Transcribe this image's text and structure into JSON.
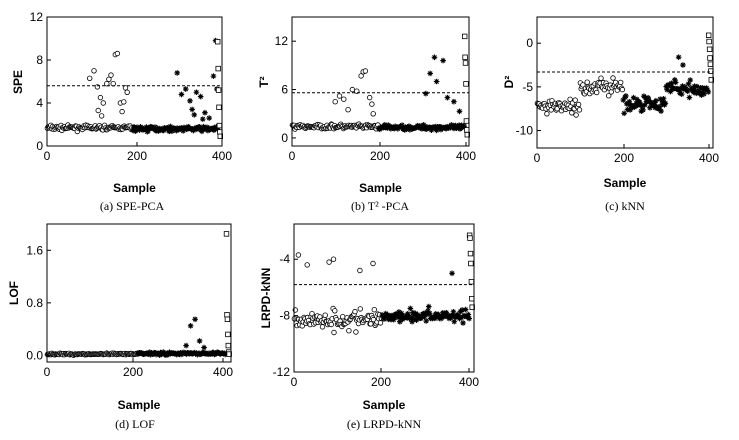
{
  "chart_data": [
    {
      "type": "scatter",
      "caption": "(a) SPE-PCA",
      "xlabel": "Sample",
      "ylabel": "SPE",
      "xlim": [
        0,
        410
      ],
      "ylim": [
        0,
        12
      ],
      "xticks": [
        0,
        200,
        400
      ],
      "yticks": [
        0,
        4,
        8,
        12
      ],
      "threshold": 5.6,
      "series": [
        {
          "marker": "circle",
          "x_range": [
            1,
            200
          ],
          "base": 1.7,
          "spread": 0.35,
          "spikes": [
            [
              100,
              6.3
            ],
            [
              110,
              7.0
            ],
            [
              118,
              5.5
            ],
            [
              125,
              4.5
            ],
            [
              132,
              4.0
            ],
            [
              140,
              5.8
            ],
            [
              145,
              6.2
            ],
            [
              150,
              6.6
            ],
            [
              155,
              5.8
            ],
            [
              160,
              8.5
            ],
            [
              165,
              8.6
            ],
            [
              172,
              4.0
            ],
            [
              176,
              3.2
            ],
            [
              180,
              4.1
            ],
            [
              184,
              5.4
            ],
            [
              188,
              5.0
            ],
            [
              120,
              3.3
            ],
            [
              128,
              2.8
            ]
          ]
        },
        {
          "marker": "star",
          "x_range": [
            201,
            400
          ],
          "base": 1.6,
          "spread": 0.4,
          "spikes": [
            [
              305,
              6.8
            ],
            [
              315,
              4.8
            ],
            [
              325,
              5.3
            ],
            [
              335,
              4.2
            ],
            [
              340,
              3.4
            ],
            [
              345,
              2.9
            ],
            [
              350,
              5.0
            ],
            [
              360,
              4.6
            ],
            [
              365,
              2.5
            ],
            [
              370,
              3.1
            ],
            [
              380,
              2.6
            ],
            [
              390,
              6.5
            ],
            [
              395,
              9.8
            ],
            [
              398,
              5.3
            ]
          ]
        },
        {
          "marker": "square",
          "points": [
            [
              400,
              9.7
            ],
            [
              401,
              7.2
            ],
            [
              402,
              5.2
            ],
            [
              403,
              3.6
            ],
            [
              404,
              1.9
            ],
            [
              405,
              1.3
            ],
            [
              406,
              0.9
            ]
          ]
        }
      ]
    },
    {
      "type": "scatter",
      "caption": "(b) T² -PCA",
      "xlabel": "Sample",
      "ylabel": "T²",
      "xlim": [
        0,
        410
      ],
      "ylim": [
        -1,
        15
      ],
      "xticks": [
        0,
        200,
        400
      ],
      "yticks": [
        0,
        6,
        12
      ],
      "threshold": 5.6,
      "series": [
        {
          "marker": "circle",
          "x_range": [
            1,
            200
          ],
          "base": 1.4,
          "spread": 0.5,
          "spikes": [
            [
              100,
              4.5
            ],
            [
              110,
              5.2
            ],
            [
              120,
              4.8
            ],
            [
              130,
              3.5
            ],
            [
              140,
              6.0
            ],
            [
              150,
              5.8
            ],
            [
              160,
              7.7
            ],
            [
              165,
              8.2
            ],
            [
              170,
              8.3
            ],
            [
              180,
              5.0
            ],
            [
              185,
              4.2
            ],
            [
              188,
              3.0
            ]
          ]
        },
        {
          "marker": "star",
          "x_range": [
            201,
            400
          ],
          "base": 1.3,
          "spread": 0.5,
          "spikes": [
            [
              310,
              5.5
            ],
            [
              320,
              8.0
            ],
            [
              330,
              10.0
            ],
            [
              335,
              7.0
            ],
            [
              350,
              9.6
            ],
            [
              360,
              5.0
            ],
            [
              375,
              4.5
            ],
            [
              388,
              3.3
            ]
          ]
        },
        {
          "marker": "square",
          "points": [
            [
              400,
              12.6
            ],
            [
              401,
              10.0
            ],
            [
              402,
              9.3
            ],
            [
              403,
              6.7
            ],
            [
              404,
              2.1
            ],
            [
              405,
              1.0
            ],
            [
              406,
              0.4
            ]
          ]
        }
      ]
    },
    {
      "type": "scatter",
      "caption": "(c) kNN",
      "xlabel": "Sample",
      "ylabel": "D²",
      "xlim": [
        0,
        410
      ],
      "ylim": [
        -12,
        3
      ],
      "xticks": [
        0,
        200,
        400
      ],
      "yticks": [
        -10,
        -5,
        0
      ],
      "threshold": -3.3,
      "series": [
        {
          "marker": "circle",
          "x_range": [
            1,
            200
          ],
          "base": -6.4,
          "spread": 1.2,
          "spikes": []
        },
        {
          "marker": "star",
          "x_range": [
            201,
            400
          ],
          "base": -6.0,
          "spread": 1.3,
          "spikes": [
            [
              330,
              -1.6
            ],
            [
              340,
              -2.5
            ]
          ]
        },
        {
          "marker": "square",
          "points": [
            [
              400,
              0.9
            ],
            [
              401,
              0.2
            ],
            [
              402,
              -0.7
            ],
            [
              403,
              -1.7
            ],
            [
              404,
              -2.4
            ],
            [
              405,
              -3.2
            ],
            [
              406,
              -4.2
            ]
          ]
        }
      ]
    },
    {
      "type": "scatter",
      "caption": "(d) LOF",
      "xlabel": "Sample",
      "ylabel": "LOF",
      "xlim": [
        0,
        410
      ],
      "ylim": [
        -0.1,
        2.0
      ],
      "xticks": [
        0,
        200,
        400
      ],
      "yticks": [
        0.0,
        0.8,
        1.6
      ],
      "threshold": null,
      "series": [
        {
          "marker": "circle",
          "x_range": [
            1,
            200
          ],
          "base": 0.02,
          "spread": 0.025,
          "spikes": []
        },
        {
          "marker": "star",
          "x_range": [
            201,
            400
          ],
          "base": 0.03,
          "spread": 0.035,
          "spikes": [
            [
              310,
              0.15
            ],
            [
              320,
              0.45
            ],
            [
              330,
              0.55
            ],
            [
              340,
              0.22
            ],
            [
              350,
              0.12
            ]
          ]
        },
        {
          "marker": "square",
          "points": [
            [
              400,
              1.85
            ],
            [
              401,
              0.62
            ],
            [
              402,
              0.55
            ],
            [
              403,
              0.32
            ],
            [
              404,
              0.15
            ],
            [
              405,
              0.05
            ],
            [
              406,
              0.02
            ]
          ]
        }
      ]
    },
    {
      "type": "scatter",
      "caption": "(e)    LRPD-kNN",
      "xlabel": "Sample",
      "ylabel": "LRPD-kNN",
      "xlim": [
        0,
        410
      ],
      "ylim": [
        -12,
        -1.5
      ],
      "xticks": [
        0,
        200,
        400
      ],
      "yticks": [
        -12,
        -8,
        -4
      ],
      "threshold": -5.8,
      "series": [
        {
          "marker": "circle",
          "x_range": [
            1,
            200
          ],
          "base": -8.3,
          "spread": 1.2,
          "spikes": [
            [
              10,
              -3.7
            ],
            [
              30,
              -4.4
            ],
            [
              80,
              -4.2
            ],
            [
              90,
              -4.0
            ],
            [
              150,
              -4.8
            ],
            [
              180,
              -4.3
            ]
          ]
        },
        {
          "marker": "star",
          "x_range": [
            201,
            400
          ],
          "base": -8.0,
          "spread": 0.8,
          "spikes": [
            [
              360,
              -5.0
            ]
          ]
        },
        {
          "marker": "square",
          "points": [
            [
              400,
              -2.3
            ],
            [
              401,
              -2.5
            ],
            [
              402,
              -3.6
            ],
            [
              403,
              -4.3
            ],
            [
              404,
              -5.6
            ],
            [
              405,
              -6.8
            ],
            [
              406,
              -7.4
            ]
          ]
        }
      ]
    }
  ]
}
